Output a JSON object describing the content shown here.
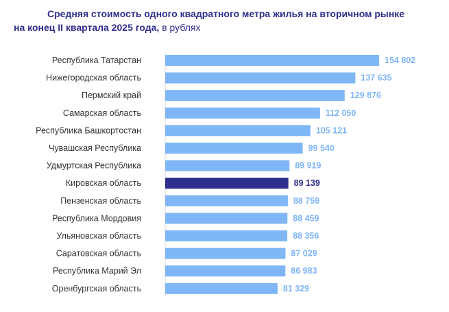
{
  "title": {
    "line1": "Средняя стоимость одного квадратного метра жилья на вторичном рынке",
    "line2": "на конец II квартала 2025 года,",
    "unit": " в рублях"
  },
  "colors": {
    "bar": "#7fb6f5",
    "bar_highlight": "#2e2e8c",
    "label": "#7fb6f5",
    "label_highlight": "#2e2e8c",
    "category": "#333333",
    "title": "#2e2e8c"
  },
  "chart_data": {
    "type": "bar",
    "orientation": "horizontal",
    "title": "Средняя стоимость одного квадратного метра жилья на вторичном рынке на конец II квартала 2025 года, в рублях",
    "categories": [
      "Республика Татарстан",
      "Нижегородская область",
      "Пермский край",
      "Самарская область",
      "Республика Башкортостан",
      "Чувашская Республика",
      "Удмуртская Республика",
      "Кировская область",
      "Пензенская область",
      "Республика Мордовия",
      "Ульяновская область",
      "Саратовская область",
      "Республика Марий Эл",
      "Оренбургская область"
    ],
    "values": [
      154802,
      137635,
      129876,
      112050,
      105121,
      99540,
      89919,
      89139,
      88759,
      88459,
      88356,
      87029,
      86983,
      81329
    ],
    "value_labels": [
      "154 802",
      "137 635",
      "129 876",
      "112 050",
      "105 121",
      "99 540",
      "89 919",
      "89 139",
      "88 759",
      "88 459",
      "88 356",
      "87 029",
      "86 983",
      "81 329"
    ],
    "highlight": "Кировская область",
    "xlim": [
      0,
      160000
    ],
    "grid": false,
    "legend": "none"
  }
}
